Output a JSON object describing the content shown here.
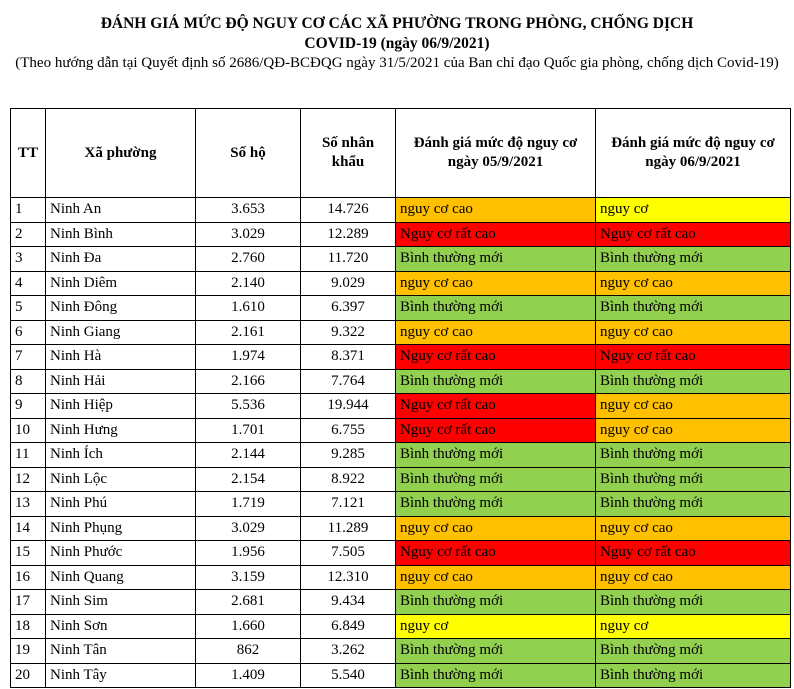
{
  "header": {
    "title_line1": "ĐÁNH GIÁ MỨC ĐỘ NGUY CƠ CÁC XÃ PHƯỜNG TRONG PHÒNG, CHỐNG DỊCH",
    "title_line2": "COVID-19 (ngày 06/9/2021)",
    "subtitle": "(Theo hướng dẫn tại Quyết định số 2686/QĐ-BCĐQG ngày 31/5/2021 của Ban chỉ đạo Quốc gia phòng, chống dịch Covid-19)"
  },
  "table": {
    "columns": [
      "TT",
      "Xã phường",
      "Số hộ",
      "Số nhân khẩu",
      "Đánh giá mức độ nguy cơ ngày 05/9/2021",
      "Đánh giá mức độ nguy cơ ngày 06/9/2021"
    ],
    "rows": [
      [
        "1",
        "Ninh An",
        "3.653",
        "14.726",
        {
          "text": "nguy cơ cao",
          "color": "#ffc000"
        },
        {
          "text": "nguy cơ",
          "color": "#ffff00"
        }
      ],
      [
        "2",
        "Ninh Bình",
        "3.029",
        "12.289",
        {
          "text": "Nguy cơ rất cao",
          "color": "#ff0000"
        },
        {
          "text": "Nguy cơ rất cao",
          "color": "#ff0000"
        }
      ],
      [
        "3",
        "Ninh Đa",
        "2.760",
        "11.720",
        {
          "text": "Bình thường mới",
          "color": "#92d050"
        },
        {
          "text": "Bình thường mới",
          "color": "#92d050"
        }
      ],
      [
        "4",
        "Ninh Diêm",
        "2.140",
        "9.029",
        {
          "text": "nguy cơ cao",
          "color": "#ffc000"
        },
        {
          "text": "nguy cơ cao",
          "color": "#ffc000"
        }
      ],
      [
        "5",
        "Ninh Đông",
        "1.610",
        "6.397",
        {
          "text": "Bình thường mới",
          "color": "#92d050"
        },
        {
          "text": "Bình thường mới",
          "color": "#92d050"
        }
      ],
      [
        "6",
        "Ninh Giang",
        "2.161",
        "9.322",
        {
          "text": "nguy cơ cao",
          "color": "#ffc000"
        },
        {
          "text": "nguy cơ cao",
          "color": "#ffc000"
        }
      ],
      [
        "7",
        "Ninh Hà",
        "1.974",
        "8.371",
        {
          "text": "Nguy cơ rất cao",
          "color": "#ff0000"
        },
        {
          "text": "Nguy cơ rất cao",
          "color": "#ff0000"
        }
      ],
      [
        "8",
        "Ninh Hải",
        "2.166",
        "7.764",
        {
          "text": "Bình thường mới",
          "color": "#92d050"
        },
        {
          "text": "Bình thường mới",
          "color": "#92d050"
        }
      ],
      [
        "9",
        "Ninh Hiệp",
        "5.536",
        "19.944",
        {
          "text": "Nguy cơ rất cao",
          "color": "#ff0000"
        },
        {
          "text": "nguy cơ cao",
          "color": "#ffc000"
        }
      ],
      [
        "10",
        "Ninh Hưng",
        "1.701",
        "6.755",
        {
          "text": "Nguy cơ rất cao",
          "color": "#ff0000"
        },
        {
          "text": "nguy cơ cao",
          "color": "#ffc000"
        }
      ],
      [
        "11",
        "Ninh Ích",
        "2.144",
        "9.285",
        {
          "text": "Bình thường mới",
          "color": "#92d050"
        },
        {
          "text": "Bình thường mới",
          "color": "#92d050"
        }
      ],
      [
        "12",
        "Ninh Lộc",
        "2.154",
        "8.922",
        {
          "text": "Bình thường mới",
          "color": "#92d050"
        },
        {
          "text": "Bình thường mới",
          "color": "#92d050"
        }
      ],
      [
        "13",
        "Ninh Phú",
        "1.719",
        "7.121",
        {
          "text": "Bình thường mới",
          "color": "#92d050"
        },
        {
          "text": "Bình thường mới",
          "color": "#92d050"
        }
      ],
      [
        "14",
        "Ninh Phụng",
        "3.029",
        "11.289",
        {
          "text": "nguy cơ cao",
          "color": "#ffc000"
        },
        {
          "text": "nguy cơ cao",
          "color": "#ffc000"
        }
      ],
      [
        "15",
        "Ninh Phước",
        "1.956",
        "7.505",
        {
          "text": "Nguy cơ rất cao",
          "color": "#ff0000"
        },
        {
          "text": "Nguy cơ rất cao",
          "color": "#ff0000"
        }
      ],
      [
        "16",
        "Ninh Quang",
        "3.159",
        "12.310",
        {
          "text": "nguy cơ cao",
          "color": "#ffc000"
        },
        {
          "text": "nguy cơ cao",
          "color": "#ffc000"
        }
      ],
      [
        "17",
        "Ninh Sim",
        "2.681",
        "9.434",
        {
          "text": "Bình thường mới",
          "color": "#92d050"
        },
        {
          "text": "Bình thường mới",
          "color": "#92d050"
        }
      ],
      [
        "18",
        "Ninh Sơn",
        "1.660",
        "6.849",
        {
          "text": "nguy cơ",
          "color": "#ffff00"
        },
        {
          "text": "nguy cơ",
          "color": "#ffff00"
        }
      ],
      [
        "19",
        "Ninh Tân",
        "862",
        "3.262",
        {
          "text": "Bình thường mới",
          "color": "#92d050"
        },
        {
          "text": "Bình thường mới",
          "color": "#92d050"
        }
      ],
      [
        "20",
        "Ninh Tây",
        "1.409",
        "5.540",
        {
          "text": "Bình thường mới",
          "color": "#92d050"
        },
        {
          "text": "Bình thường mới",
          "color": "#92d050"
        }
      ]
    ]
  }
}
